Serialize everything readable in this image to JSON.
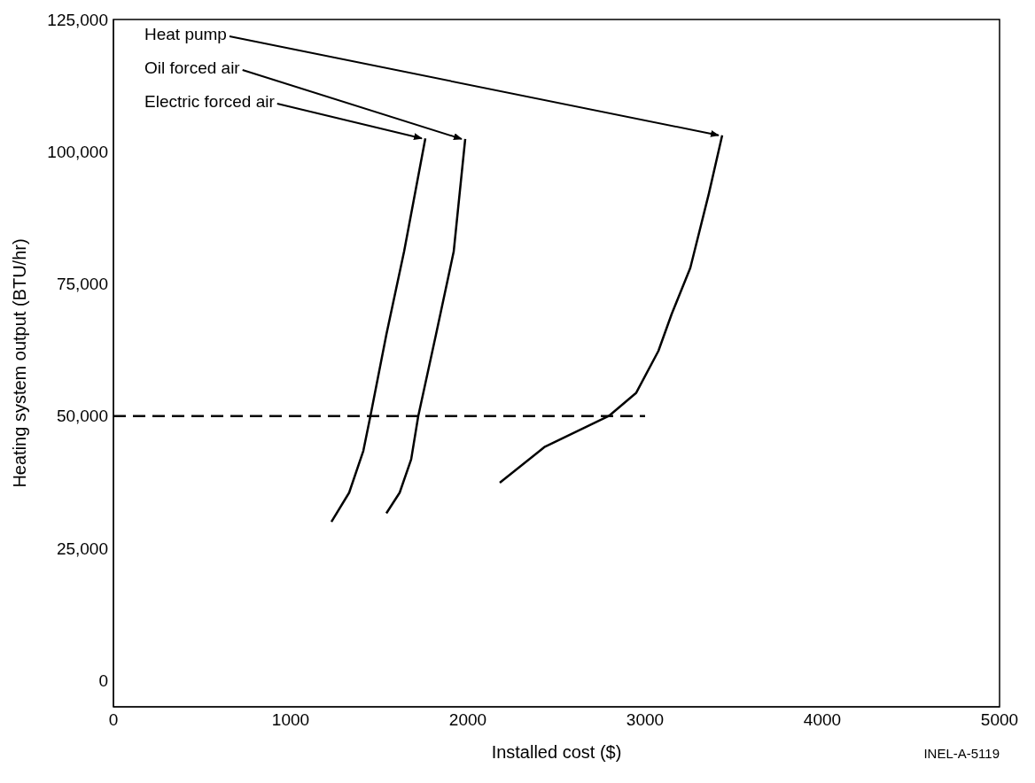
{
  "chart_data": {
    "type": "line",
    "xlabel": "Installed cost ($)",
    "ylabel": "Heating system output (BTU/hr)",
    "xlim": [
      0,
      5000
    ],
    "ylim": [
      -5000,
      125000
    ],
    "xticks": [
      0,
      1000,
      2000,
      3000,
      4000,
      5000
    ],
    "yticks": [
      0,
      {
        "value": 25000,
        "label": "25,000"
      },
      {
        "value": 50000,
        "label": "50,000"
      },
      {
        "value": 75000,
        "label": "75,000"
      },
      {
        "value": 100000,
        "label": "100,000"
      },
      {
        "value": 125000,
        "label": "125,000"
      }
    ],
    "series": [
      {
        "color": "#000000",
        "x": [
          1230,
          1330,
          1410,
          1450,
          1540,
          1640,
          1760
        ],
        "values": [
          30000,
          35500,
          43400,
          50000,
          65400,
          81100,
          102500
        ]
      },
      {
        "color": "#000000",
        "x": [
          1540,
          1615,
          1680,
          1720,
          1820,
          1920,
          1985
        ],
        "values": [
          31600,
          35500,
          41800,
          50000,
          65400,
          81100,
          102400
        ]
      },
      {
        "color": "#000000",
        "x": [
          2180,
          2435,
          2795,
          2950,
          3075,
          3150,
          3255,
          3360,
          3435
        ],
        "values": [
          37400,
          44200,
          50000,
          54400,
          62300,
          69300,
          78000,
          92100,
          103100
        ]
      },
      {
        "color": "#000000",
        "line_style": "dashed",
        "x": [
          0,
          3000
        ],
        "values": [
          50000,
          50000
        ]
      }
    ],
    "annotations": [
      {
        "text": "Heat pump",
        "x": 3435,
        "y": 103100
      },
      {
        "text": "Oil forced air",
        "x": 1985,
        "y": 102400
      },
      {
        "text": "Electric forced air",
        "x": 1760,
        "y": 102500
      },
      "INEL-A-5119"
    ]
  }
}
